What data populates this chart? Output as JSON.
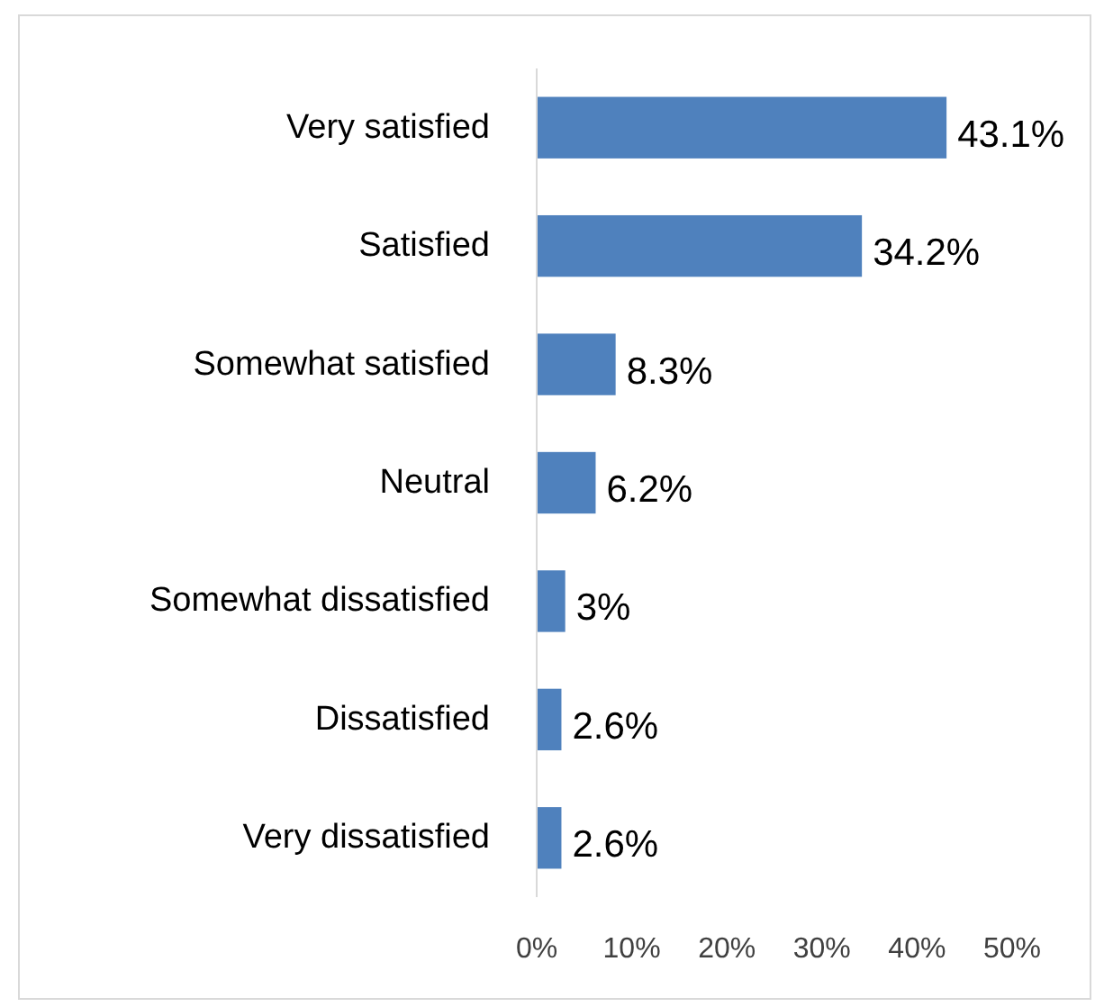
{
  "chart_data": {
    "type": "bar",
    "orientation": "horizontal",
    "categories": [
      "Very satisfied",
      "Satisfied",
      "Somewhat satisfied",
      "Neutral",
      "Somewhat dissatisfied",
      "Dissatisfied",
      "Very dissatisfied"
    ],
    "values": [
      43.1,
      34.2,
      8.3,
      6.2,
      3,
      2.6,
      2.6
    ],
    "value_labels": [
      "43.1%",
      "34.2%",
      "8.3%",
      "6.2%",
      "3%",
      "2.6%",
      "2.6%"
    ],
    "color": "#4f81bd",
    "xlim": [
      0,
      50
    ],
    "xticks": [
      {
        "value": 0,
        "label": "0%"
      },
      {
        "value": 10,
        "label": "10%"
      },
      {
        "value": 20,
        "label": "20%"
      },
      {
        "value": 30,
        "label": "30%"
      },
      {
        "value": 40,
        "label": "40%"
      },
      {
        "value": 50,
        "label": "50%"
      }
    ],
    "grid": false
  }
}
